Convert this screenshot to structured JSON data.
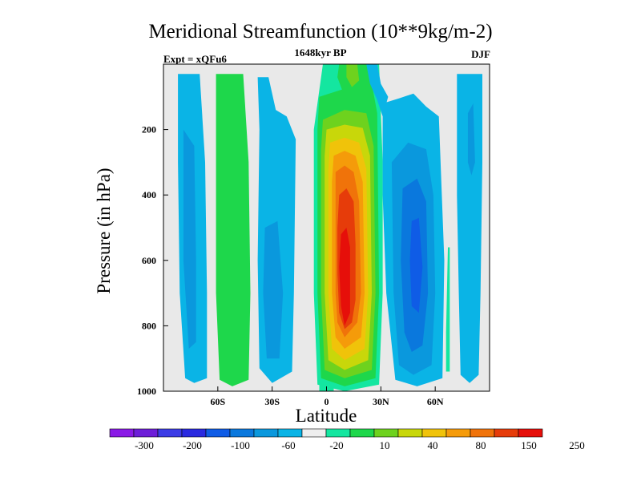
{
  "chart_data": {
    "type": "contour",
    "title": "Meridional Streamfunction (10**9kg/m-2)",
    "subtitle": "1648kyr BP",
    "left_string": "Expt = xQFu6",
    "right_string": "DJF",
    "xlabel": "Latitude",
    "ylabel": "Pressure (in hPa)",
    "xlim": [
      -90,
      90
    ],
    "ylim": [
      1000,
      0
    ],
    "x_ticks": [
      {
        "value": -60,
        "label": "60S"
      },
      {
        "value": -30,
        "label": "30S"
      },
      {
        "value": 0,
        "label": "0"
      },
      {
        "value": 30,
        "label": "30N"
      },
      {
        "value": 60,
        "label": "60N"
      }
    ],
    "y_ticks": [
      {
        "value": 200,
        "label": "200"
      },
      {
        "value": 400,
        "label": "400"
      },
      {
        "value": 600,
        "label": "600"
      },
      {
        "value": 800,
        "label": "800"
      },
      {
        "value": 1000,
        "label": "1000"
      }
    ],
    "levels": [
      "-300",
      "-200",
      "-100",
      "-60",
      "-20",
      "10",
      "40",
      "80",
      "150",
      "250"
    ],
    "colorbar_colors": [
      "#8a1ae6",
      "#6d1ed8",
      "#3c3ce6",
      "#2a2ae0",
      "#0f5ce6",
      "#0a78dd",
      "#0a98dd",
      "#0ab4e6",
      "#eeeeee",
      "#14e6a0",
      "#1ed74b",
      "#6ed21e",
      "#c8d70a",
      "#f0c30a",
      "#f59b0a",
      "#f0730a",
      "#e63c0a",
      "#e60f0a"
    ],
    "features": [
      {
        "name": "Southern polar cell",
        "lat": [
          -82,
          -66
        ],
        "p": [
          30,
          975
        ],
        "sign": "negative",
        "peak_level": "-20"
      },
      {
        "name": "Southern Ferrel cell",
        "lat": [
          -61,
          -42
        ],
        "p": [
          30,
          985
        ],
        "sign": "positive",
        "peak_level": "40"
      },
      {
        "name": "Southern subtropical negative cell",
        "lat": [
          -38,
          -17
        ],
        "p": [
          40,
          975
        ],
        "sign": "negative",
        "peak_level": "-20"
      },
      {
        "name": "Winter Hadley cell",
        "lat": [
          -7,
          31
        ],
        "p": [
          70,
          1000
        ],
        "sign": "positive",
        "peak_level": "250"
      },
      {
        "name": "Northern Ferrel cell",
        "lat": [
          31,
          65
        ],
        "p": [
          120,
          985
        ],
        "sign": "negative",
        "peak_level": "-60"
      },
      {
        "name": "Northern polar cell",
        "lat": [
          72,
          86
        ],
        "p": [
          30,
          975
        ],
        "sign": "negative",
        "peak_level": "-20"
      }
    ]
  }
}
